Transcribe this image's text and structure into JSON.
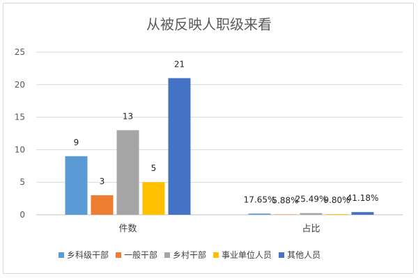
{
  "chart_data": {
    "type": "bar",
    "title": "从被反映人职级来看",
    "categories": [
      "件数",
      "占比"
    ],
    "series": [
      {
        "name": "乡科级干部",
        "color": "#5B9BD5",
        "values": [
          9,
          0.1765
        ],
        "labels": [
          "9",
          "17.65%"
        ]
      },
      {
        "name": "一般干部",
        "color": "#ED7D31",
        "values": [
          3,
          0.0588
        ],
        "labels": [
          "3",
          "5.88%"
        ]
      },
      {
        "name": "乡村干部",
        "color": "#A5A5A5",
        "values": [
          13,
          0.2549
        ],
        "labels": [
          "13",
          "25.49%"
        ]
      },
      {
        "name": "事业单位人员",
        "color": "#FFC000",
        "values": [
          5,
          0.098
        ],
        "labels": [
          "5",
          "9.80%"
        ]
      },
      {
        "name": "其他人员",
        "color": "#4472C4",
        "values": [
          21,
          0.4118
        ],
        "labels": [
          "21",
          "41.18%"
        ]
      }
    ],
    "y_ticks": [
      "0",
      "5",
      "10",
      "15",
      "20",
      "25"
    ],
    "ylim": [
      0,
      25
    ],
    "grid": true,
    "legend_position": "bottom"
  }
}
